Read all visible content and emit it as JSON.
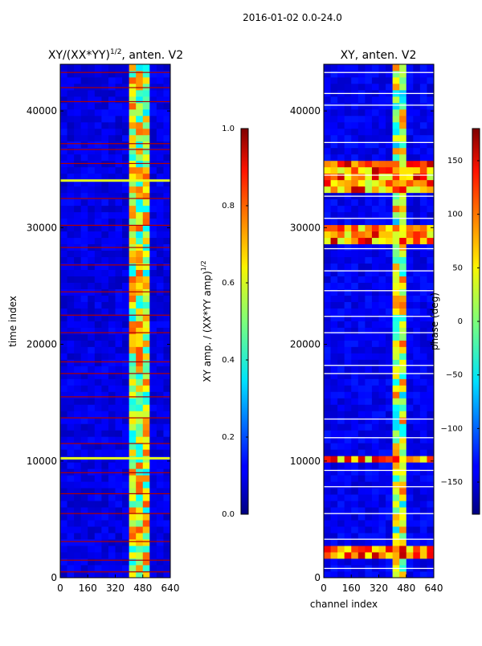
{
  "figure": {
    "suptitle": "2016-01-02 0.0-24.0"
  },
  "chart_data": [
    {
      "type": "heatmap",
      "title": "XY/(XX*YY)",
      "title_sup": "1/2",
      "title_tail": ", anten. V2",
      "xlabel": "",
      "ylabel": "time index",
      "xlim": [
        0,
        640
      ],
      "ylim": [
        0,
        44000
      ],
      "xticks": [
        "0",
        "160",
        "320",
        "480",
        "640"
      ],
      "yticks": [
        "0",
        "10000",
        "20000",
        "30000",
        "40000"
      ],
      "yticks_values": [
        0,
        10000,
        20000,
        30000,
        40000
      ],
      "colorbar": {
        "label": "XY amp. / (XX*YY amp)",
        "label_sup": "1/2",
        "range": [
          0.0,
          1.0
        ],
        "ticks": [
          "0.0",
          "0.2",
          "0.4",
          "0.6",
          "0.8",
          "1.0"
        ],
        "ticks_values": [
          0.0,
          0.2,
          0.4,
          0.6,
          0.8,
          1.0
        ]
      },
      "dominant_value": 0.1,
      "bright_band_channels": [
        [
          400,
          500
        ]
      ],
      "high_rows": [
        10200,
        34000
      ],
      "red_lines": [
        500,
        1500,
        3100,
        5500,
        7200,
        9000,
        11500,
        13700,
        15500,
        17500,
        18500,
        21000,
        22500,
        24500,
        26800,
        28300,
        30200,
        32500,
        35500,
        36700,
        37200,
        40800,
        42000,
        43300
      ]
    },
    {
      "type": "heatmap",
      "title": "XY, anten. V2",
      "xlabel": "channel index",
      "ylabel": "",
      "xlim": [
        0,
        640
      ],
      "ylim": [
        0,
        44000
      ],
      "xticks": [
        "0",
        "160",
        "320",
        "480",
        "640"
      ],
      "yticks": [
        "0",
        "10000",
        "20000",
        "30000",
        "40000"
      ],
      "yticks_values": [
        0,
        10000,
        20000,
        30000,
        40000
      ],
      "colorbar": {
        "label": "phase (deg)",
        "range": [
          -180,
          180
        ],
        "ticks": [
          "−150",
          "−100",
          "−50",
          "0",
          "50",
          "100",
          "150"
        ],
        "ticks_values": [
          -150,
          -100,
          -50,
          0,
          50,
          100,
          150
        ]
      },
      "dominant_value": -140,
      "hot_regions": [
        [
          28500,
          30000
        ],
        [
          33000,
          36000
        ],
        [
          1500,
          2500
        ],
        [
          10000,
          10600
        ]
      ],
      "white_lines": [
        800,
        3300,
        5500,
        7800,
        9200,
        12000,
        13600,
        17500,
        18200,
        21000,
        22400,
        24600,
        26300,
        28200,
        30800,
        32700,
        34500,
        37300,
        40500,
        41500,
        43300
      ]
    }
  ]
}
